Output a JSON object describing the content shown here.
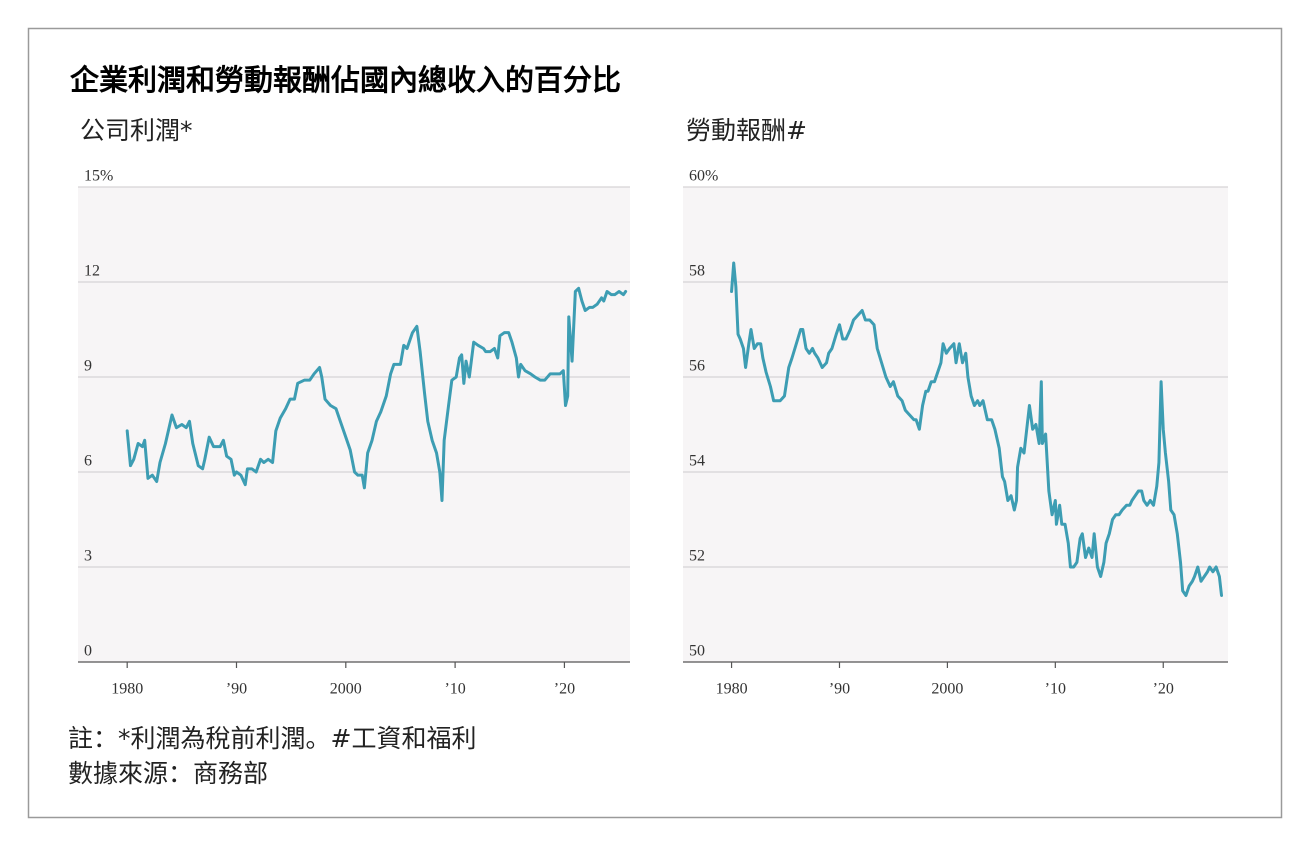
{
  "title": "企業利潤和勞動報酬佔國內總收入的百分比",
  "notes": [
    "註：*利潤為稅前利潤。#工資和福利",
    "數據來源：商務部"
  ],
  "chart_data": [
    {
      "type": "line",
      "title": "公司利潤*",
      "color": "#3d9db3",
      "grid": true,
      "xlim": [
        1975.5,
        2026.0
      ],
      "xticks": [
        1980,
        {
          "value": 1990,
          "label": "’90"
        },
        2000,
        {
          "value": 2010,
          "label": "’10"
        },
        {
          "value": 2020,
          "label": "’20"
        }
      ],
      "ylim": [
        0,
        15
      ],
      "yticks": [
        0,
        3,
        6,
        9,
        12,
        {
          "value": 15,
          "label": "15%"
        }
      ],
      "x": [
        1980.0,
        1980.3,
        1980.6,
        1981.0,
        1981.4,
        1981.6,
        1981.9,
        1982.3,
        1982.7,
        1983.0,
        1983.5,
        1984.1,
        1984.5,
        1985.0,
        1985.4,
        1985.7,
        1986.0,
        1986.5,
        1986.9,
        1987.1,
        1987.5,
        1987.9,
        1988.5,
        1988.8,
        1989.1,
        1989.5,
        1989.8,
        1990.0,
        1990.4,
        1990.8,
        1991.0,
        1991.4,
        1991.8,
        1992.2,
        1992.5,
        1992.9,
        1993.3,
        1993.6,
        1994.0,
        1994.5,
        1994.9,
        1995.3,
        1995.6,
        1996.2,
        1996.7,
        1997.1,
        1997.6,
        1997.8,
        1998.1,
        1998.6,
        1999.1,
        1999.5,
        1999.9,
        2000.4,
        2000.8,
        2001.1,
        2001.5,
        2001.7,
        2002.0,
        2002.4,
        2002.8,
        2003.2,
        2003.7,
        2004.1,
        2004.4,
        2005.0,
        2005.3,
        2005.6,
        2006.1,
        2006.5,
        2006.8,
        2007.2,
        2007.5,
        2007.9,
        2008.3,
        2008.6,
        2008.8,
        2009.0,
        2009.4,
        2009.7,
        2010.1,
        2010.4,
        2010.6,
        2010.8,
        2011.0,
        2011.3,
        2011.7,
        2012.1,
        2012.6,
        2012.8,
        2013.2,
        2013.6,
        2013.9,
        2014.1,
        2014.5,
        2014.9,
        2015.2,
        2015.6,
        2015.8,
        2016.0,
        2016.4,
        2016.9,
        2017.3,
        2017.8,
        2018.2,
        2018.7,
        2019.2,
        2019.6,
        2019.9,
        2020.1,
        2020.3,
        2020.4,
        2020.7,
        2021.0,
        2021.3,
        2021.6,
        2021.9,
        2022.3,
        2022.6,
        2023.0,
        2023.4,
        2023.6,
        2023.9,
        2024.3,
        2024.6,
        2025.0,
        2025.4,
        2025.6
      ],
      "values": [
        7.3,
        6.2,
        6.4,
        6.9,
        6.8,
        7.0,
        5.8,
        5.9,
        5.7,
        6.3,
        6.9,
        7.8,
        7.4,
        7.5,
        7.4,
        7.6,
        6.9,
        6.2,
        6.1,
        6.4,
        7.1,
        6.8,
        6.8,
        7.0,
        6.5,
        6.4,
        5.9,
        6.0,
        5.9,
        5.6,
        6.1,
        6.1,
        6.0,
        6.4,
        6.3,
        6.4,
        6.3,
        7.3,
        7.7,
        8.0,
        8.3,
        8.3,
        8.8,
        8.9,
        8.9,
        9.1,
        9.3,
        9.0,
        8.3,
        8.1,
        8.0,
        7.6,
        7.2,
        6.7,
        6.0,
        5.9,
        5.9,
        5.5,
        6.6,
        7.0,
        7.6,
        7.9,
        8.4,
        9.1,
        9.4,
        9.4,
        10.0,
        9.9,
        10.4,
        10.6,
        9.8,
        8.5,
        7.6,
        7.0,
        6.6,
        6.0,
        5.1,
        7.0,
        8.1,
        8.9,
        9.0,
        9.6,
        9.7,
        8.8,
        9.5,
        9.0,
        10.1,
        10.0,
        9.9,
        9.8,
        9.8,
        9.9,
        9.6,
        10.3,
        10.4,
        10.4,
        10.1,
        9.6,
        9.0,
        9.4,
        9.2,
        9.1,
        9.0,
        8.9,
        8.9,
        9.1,
        9.1,
        9.1,
        9.2,
        8.1,
        8.4,
        10.9,
        9.5,
        11.7,
        11.8,
        11.4,
        11.1,
        11.2,
        11.2,
        11.3,
        11.5,
        11.4,
        11.7,
        11.6,
        11.6,
        11.7,
        11.6,
        11.7
      ]
    },
    {
      "type": "line",
      "title": "勞動報酬#",
      "color": "#3d9db3",
      "grid": true,
      "xlim": [
        1975.5,
        2026.0
      ],
      "xticks": [
        1980,
        {
          "value": 1990,
          "label": "’90"
        },
        2000,
        {
          "value": 2010,
          "label": "’10"
        },
        {
          "value": 2020,
          "label": "’20"
        }
      ],
      "ylim": [
        50,
        60
      ],
      "yticks": [
        50,
        52,
        54,
        56,
        58,
        {
          "value": 60,
          "label": "60%"
        }
      ],
      "x": [
        1980.0,
        1980.2,
        1980.4,
        1980.6,
        1980.8,
        1981.1,
        1981.3,
        1981.6,
        1981.8,
        1982.1,
        1982.4,
        1982.7,
        1982.9,
        1983.2,
        1983.6,
        1983.9,
        1984.1,
        1984.5,
        1984.9,
        1985.3,
        1985.6,
        1986.0,
        1986.4,
        1986.6,
        1986.9,
        1987.2,
        1987.5,
        1987.7,
        1988.0,
        1988.4,
        1988.8,
        1989.0,
        1989.3,
        1989.7,
        1990.0,
        1990.3,
        1990.6,
        1991.0,
        1991.3,
        1991.7,
        1992.1,
        1992.4,
        1992.8,
        1993.2,
        1993.5,
        1993.9,
        1994.3,
        1994.7,
        1995.0,
        1995.4,
        1995.8,
        1996.1,
        1996.5,
        1996.9,
        1997.1,
        1997.4,
        1997.7,
        1998.0,
        1998.2,
        1998.5,
        1998.8,
        1999.1,
        1999.4,
        1999.6,
        1999.9,
        2000.2,
        2000.6,
        2000.8,
        2001.1,
        2001.4,
        2001.7,
        2001.9,
        2002.2,
        2002.5,
        2002.8,
        2003.0,
        2003.3,
        2003.7,
        2004.1,
        2004.4,
        2004.8,
        2005.1,
        2005.3,
        2005.6,
        2005.9,
        2006.2,
        2006.4,
        2006.5,
        2006.8,
        2007.1,
        2007.4,
        2007.6,
        2007.9,
        2008.2,
        2008.5,
        2008.7,
        2008.8,
        2009.1,
        2009.4,
        2009.7,
        2010.0,
        2010.1,
        2010.4,
        2010.6,
        2010.9,
        2011.2,
        2011.4,
        2011.7,
        2012.0,
        2012.3,
        2012.5,
        2012.8,
        2013.1,
        2013.4,
        2013.6,
        2013.9,
        2014.2,
        2014.5,
        2014.7,
        2015.0,
        2015.3,
        2015.6,
        2015.9,
        2016.2,
        2016.6,
        2016.9,
        2017.1,
        2017.4,
        2017.7,
        2018.0,
        2018.2,
        2018.5,
        2018.8,
        2019.1,
        2019.4,
        2019.6,
        2019.8,
        2020.0,
        2020.2,
        2020.5,
        2020.7,
        2021.0,
        2021.3,
        2021.6,
        2021.8,
        2022.1,
        2022.4,
        2022.7,
        2022.9,
        2023.2,
        2023.5,
        2023.8,
        2024.1,
        2024.3,
        2024.6,
        2024.9,
        2025.2,
        2025.4
      ],
      "values": [
        57.8,
        58.4,
        57.9,
        56.9,
        56.8,
        56.6,
        56.2,
        56.7,
        57.0,
        56.6,
        56.7,
        56.7,
        56.4,
        56.1,
        55.8,
        55.5,
        55.5,
        55.5,
        55.6,
        56.2,
        56.4,
        56.7,
        57.0,
        57.0,
        56.6,
        56.5,
        56.6,
        56.5,
        56.4,
        56.2,
        56.3,
        56.5,
        56.6,
        56.9,
        57.1,
        56.8,
        56.8,
        57.0,
        57.2,
        57.3,
        57.4,
        57.2,
        57.2,
        57.1,
        56.6,
        56.3,
        56.0,
        55.8,
        55.9,
        55.6,
        55.5,
        55.3,
        55.2,
        55.1,
        55.1,
        54.9,
        55.4,
        55.7,
        55.7,
        55.9,
        55.9,
        56.1,
        56.3,
        56.7,
        56.5,
        56.6,
        56.7,
        56.3,
        56.7,
        56.3,
        56.5,
        56.0,
        55.6,
        55.4,
        55.5,
        55.4,
        55.5,
        55.1,
        55.1,
        54.9,
        54.5,
        53.9,
        53.8,
        53.4,
        53.5,
        53.2,
        53.4,
        54.1,
        54.5,
        54.4,
        55.0,
        55.4,
        54.9,
        55.0,
        54.6,
        55.9,
        54.6,
        54.8,
        53.6,
        53.1,
        53.4,
        52.9,
        53.3,
        52.9,
        52.9,
        52.5,
        52.0,
        52.0,
        52.1,
        52.6,
        52.7,
        52.2,
        52.4,
        52.2,
        52.7,
        52.0,
        51.8,
        52.1,
        52.5,
        52.7,
        53.0,
        53.1,
        53.1,
        53.2,
        53.3,
        53.3,
        53.4,
        53.5,
        53.6,
        53.6,
        53.4,
        53.3,
        53.4,
        53.3,
        53.7,
        54.2,
        55.9,
        54.9,
        54.4,
        53.8,
        53.2,
        53.1,
        52.7,
        52.1,
        51.5,
        51.4,
        51.6,
        51.7,
        51.8,
        52.0,
        51.7,
        51.8,
        51.9,
        52.0,
        51.9,
        52.0,
        51.8,
        51.4
      ]
    }
  ]
}
